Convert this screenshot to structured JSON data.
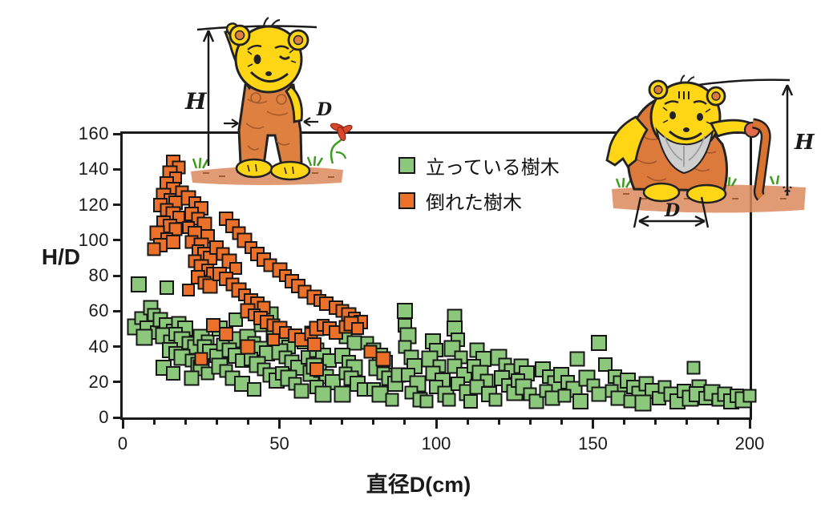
{
  "chart_data": {
    "type": "scatter",
    "title": "",
    "xlabel": "直径D(cm)",
    "ylabel": "H/D",
    "xlim": [
      0,
      200
    ],
    "ylim": [
      0,
      160
    ],
    "x_major_ticks": [
      0,
      50,
      100,
      150,
      200
    ],
    "x_minor_tick_step": 10,
    "y_ticks": [
      0,
      20,
      40,
      60,
      80,
      100,
      120,
      140,
      160
    ],
    "grid": "off",
    "legend_position": "inside-top-center",
    "marker": "square",
    "series": [
      {
        "name": "立っている樹木",
        "color": "#8CC87C",
        "points": [
          [
            5,
            75
          ],
          [
            14,
            73
          ],
          [
            4,
            51
          ],
          [
            6,
            56
          ],
          [
            9,
            62
          ],
          [
            8,
            50
          ],
          [
            11,
            48
          ],
          [
            7,
            45
          ],
          [
            10,
            58
          ],
          [
            12,
            55
          ],
          [
            14,
            52
          ],
          [
            16,
            49
          ],
          [
            13,
            46
          ],
          [
            15,
            43
          ],
          [
            18,
            53
          ],
          [
            20,
            50
          ],
          [
            17,
            47
          ],
          [
            19,
            44
          ],
          [
            21,
            42
          ],
          [
            23,
            40
          ],
          [
            15,
            38
          ],
          [
            17,
            36
          ],
          [
            19,
            34
          ],
          [
            22,
            32
          ],
          [
            24,
            30
          ],
          [
            13,
            28
          ],
          [
            16,
            25
          ],
          [
            25,
            45
          ],
          [
            27,
            43
          ],
          [
            26,
            40
          ],
          [
            28,
            37
          ],
          [
            30,
            35
          ],
          [
            25,
            28
          ],
          [
            27,
            25
          ],
          [
            22,
            22
          ],
          [
            31,
            50
          ],
          [
            33,
            47
          ],
          [
            35,
            44
          ],
          [
            32,
            41
          ],
          [
            34,
            38
          ],
          [
            36,
            35
          ],
          [
            38,
            32
          ],
          [
            31,
            29
          ],
          [
            33,
            26
          ],
          [
            35,
            22
          ],
          [
            38,
            19
          ],
          [
            36,
            55
          ],
          [
            40,
            45
          ],
          [
            42,
            42
          ],
          [
            44,
            39
          ],
          [
            46,
            36
          ],
          [
            41,
            33
          ],
          [
            43,
            30
          ],
          [
            45,
            27
          ],
          [
            47,
            24
          ],
          [
            49,
            21
          ],
          [
            42,
            16
          ],
          [
            47,
            58
          ],
          [
            44,
            52
          ],
          [
            48,
            47
          ],
          [
            51,
            43
          ],
          [
            53,
            40
          ],
          [
            50,
            37
          ],
          [
            52,
            34
          ],
          [
            54,
            31
          ],
          [
            56,
            28
          ],
          [
            51,
            25
          ],
          [
            53,
            22
          ],
          [
            55,
            19
          ],
          [
            57,
            15
          ],
          [
            58,
            43
          ],
          [
            59,
            34
          ],
          [
            60,
            25
          ],
          [
            60,
            48
          ],
          [
            62,
            38
          ],
          [
            64,
            35
          ],
          [
            66,
            32
          ],
          [
            61,
            29
          ],
          [
            63,
            26
          ],
          [
            65,
            23
          ],
          [
            67,
            20
          ],
          [
            62,
            17
          ],
          [
            64,
            13
          ],
          [
            71,
            45
          ],
          [
            74,
            42
          ],
          [
            70,
            35
          ],
          [
            72,
            31
          ],
          [
            74,
            28
          ],
          [
            71,
            25
          ],
          [
            73,
            22
          ],
          [
            75,
            19
          ],
          [
            77,
            16
          ],
          [
            70,
            13
          ],
          [
            78,
            42
          ],
          [
            80,
            38
          ],
          [
            82,
            35
          ],
          [
            84,
            31
          ],
          [
            81,
            28
          ],
          [
            83,
            25
          ],
          [
            85,
            22
          ],
          [
            87,
            19
          ],
          [
            80,
            16
          ],
          [
            82,
            13
          ],
          [
            86,
            10
          ],
          [
            88,
            24
          ],
          [
            90,
            60
          ],
          [
            90,
            52
          ],
          [
            91,
            46
          ],
          [
            90,
            40
          ],
          [
            92,
            34
          ],
          [
            93,
            29
          ],
          [
            91,
            24
          ],
          [
            94,
            19
          ],
          [
            92,
            14
          ],
          [
            95,
            10
          ],
          [
            99,
            43
          ],
          [
            100,
            38
          ],
          [
            98,
            33
          ],
          [
            101,
            29
          ],
          [
            99,
            25
          ],
          [
            102,
            21
          ],
          [
            100,
            17
          ],
          [
            103,
            13
          ],
          [
            97,
            9
          ],
          [
            106,
            57
          ],
          [
            106,
            50
          ],
          [
            107,
            44
          ],
          [
            105,
            39
          ],
          [
            108,
            34
          ],
          [
            106,
            29
          ],
          [
            109,
            24
          ],
          [
            107,
            19
          ],
          [
            110,
            14
          ],
          [
            104,
            10
          ],
          [
            113,
            38
          ],
          [
            115,
            33
          ],
          [
            112,
            29
          ],
          [
            114,
            25
          ],
          [
            116,
            21
          ],
          [
            113,
            17
          ],
          [
            117,
            13
          ],
          [
            111,
            9
          ],
          [
            120,
            34
          ],
          [
            122,
            30
          ],
          [
            124,
            26
          ],
          [
            121,
            22
          ],
          [
            123,
            18
          ],
          [
            125,
            14
          ],
          [
            119,
            10
          ],
          [
            127,
            29
          ],
          [
            129,
            25
          ],
          [
            126,
            21
          ],
          [
            128,
            17
          ],
          [
            130,
            13
          ],
          [
            132,
            9
          ],
          [
            134,
            27
          ],
          [
            136,
            23
          ],
          [
            138,
            19
          ],
          [
            135,
            15
          ],
          [
            137,
            11
          ],
          [
            140,
            24
          ],
          [
            142,
            20
          ],
          [
            144,
            16
          ],
          [
            141,
            12
          ],
          [
            145,
            33
          ],
          [
            152,
            42
          ],
          [
            154,
            30
          ],
          [
            148,
            22
          ],
          [
            150,
            18
          ],
          [
            152,
            13
          ],
          [
            146,
            9
          ],
          [
            157,
            23
          ],
          [
            159,
            19
          ],
          [
            156,
            15
          ],
          [
            158,
            11
          ],
          [
            161,
            21
          ],
          [
            163,
            17
          ],
          [
            165,
            13
          ],
          [
            162,
            9
          ],
          [
            167,
            19
          ],
          [
            169,
            15
          ],
          [
            171,
            11
          ],
          [
            166,
            8
          ],
          [
            173,
            17
          ],
          [
            175,
            13
          ],
          [
            177,
            9
          ],
          [
            179,
            15
          ],
          [
            181,
            11
          ],
          [
            182,
            28
          ],
          [
            184,
            17
          ],
          [
            183,
            13
          ],
          [
            186,
            11
          ],
          [
            188,
            14
          ],
          [
            190,
            10
          ],
          [
            192,
            13
          ],
          [
            194,
            9
          ],
          [
            196,
            12
          ],
          [
            198,
            10
          ],
          [
            200,
            12
          ]
        ]
      },
      {
        "name": "倒れた樹木",
        "color": "#EB712A",
        "points": [
          [
            16,
            144
          ],
          [
            18,
            141
          ],
          [
            15,
            138
          ],
          [
            17,
            135
          ],
          [
            14,
            132
          ],
          [
            16,
            129
          ],
          [
            19,
            127
          ],
          [
            13,
            125
          ],
          [
            15,
            123
          ],
          [
            17,
            121
          ],
          [
            12,
            120
          ],
          [
            14,
            117
          ],
          [
            16,
            115
          ],
          [
            18,
            113
          ],
          [
            13,
            110
          ],
          [
            15,
            108
          ],
          [
            17,
            106
          ],
          [
            11,
            104
          ],
          [
            14,
            101
          ],
          [
            16,
            99
          ],
          [
            12,
            97
          ],
          [
            10,
            95
          ],
          [
            21,
            124
          ],
          [
            23,
            121
          ],
          [
            25,
            118
          ],
          [
            22,
            115
          ],
          [
            24,
            112
          ],
          [
            26,
            109
          ],
          [
            21,
            107
          ],
          [
            23,
            104
          ],
          [
            27,
            102
          ],
          [
            22,
            99
          ],
          [
            25,
            97
          ],
          [
            24,
            94
          ],
          [
            26,
            92
          ],
          [
            28,
            90
          ],
          [
            23,
            88
          ],
          [
            25,
            85
          ],
          [
            27,
            83
          ],
          [
            29,
            81
          ],
          [
            24,
            79
          ],
          [
            26,
            76
          ],
          [
            28,
            74
          ],
          [
            21,
            72
          ],
          [
            33,
            112
          ],
          [
            35,
            108
          ],
          [
            37,
            104
          ],
          [
            39,
            100
          ],
          [
            41,
            96
          ],
          [
            43,
            92
          ],
          [
            45,
            89
          ],
          [
            47,
            86
          ],
          [
            50,
            83
          ],
          [
            52,
            80
          ],
          [
            54,
            77
          ],
          [
            56,
            74
          ],
          [
            58,
            71
          ],
          [
            61,
            68
          ],
          [
            63,
            66
          ],
          [
            65,
            64
          ],
          [
            68,
            62
          ],
          [
            70,
            60
          ],
          [
            72,
            58
          ],
          [
            74,
            56
          ],
          [
            76,
            54
          ],
          [
            30,
            96
          ],
          [
            32,
            92
          ],
          [
            34,
            88
          ],
          [
            36,
            84
          ],
          [
            31,
            81
          ],
          [
            33,
            78
          ],
          [
            35,
            75
          ],
          [
            37,
            72
          ],
          [
            39,
            69
          ],
          [
            41,
            66
          ],
          [
            43,
            64
          ],
          [
            45,
            62
          ],
          [
            40,
            60
          ],
          [
            42,
            58
          ],
          [
            44,
            56
          ],
          [
            46,
            54
          ],
          [
            48,
            52
          ],
          [
            50,
            50
          ],
          [
            52,
            48
          ],
          [
            55,
            46
          ],
          [
            57,
            44
          ],
          [
            60,
            47
          ],
          [
            62,
            50
          ],
          [
            64,
            52
          ],
          [
            66,
            50
          ],
          [
            68,
            48
          ],
          [
            71,
            51
          ],
          [
            73,
            53
          ],
          [
            75,
            50
          ],
          [
            29,
            52
          ],
          [
            33,
            47
          ],
          [
            25,
            33
          ],
          [
            40,
            40
          ],
          [
            48,
            44
          ],
          [
            61,
            41
          ],
          [
            62,
            27
          ],
          [
            79,
            37
          ],
          [
            83,
            33
          ]
        ]
      }
    ]
  },
  "legend": {
    "items": [
      {
        "label": "立っている樹木",
        "color": "#8CC87C"
      },
      {
        "label": "倒れた樹木",
        "color": "#EB712A"
      }
    ]
  },
  "axes": {
    "y_title": "H/D",
    "x_title": "直径D(cm)"
  },
  "illustrations": {
    "standing_bear": {
      "height_label": "H",
      "diameter_label": "D"
    },
    "old_bear": {
      "height_label": "H",
      "diameter_label": "D"
    }
  },
  "colors": {
    "standing_trees": "#8CC87C",
    "fallen_trees": "#EB712A",
    "axis": "#1a1a1a",
    "bear_yellow": "#FFD616",
    "bear_orange": "#DD8040"
  }
}
